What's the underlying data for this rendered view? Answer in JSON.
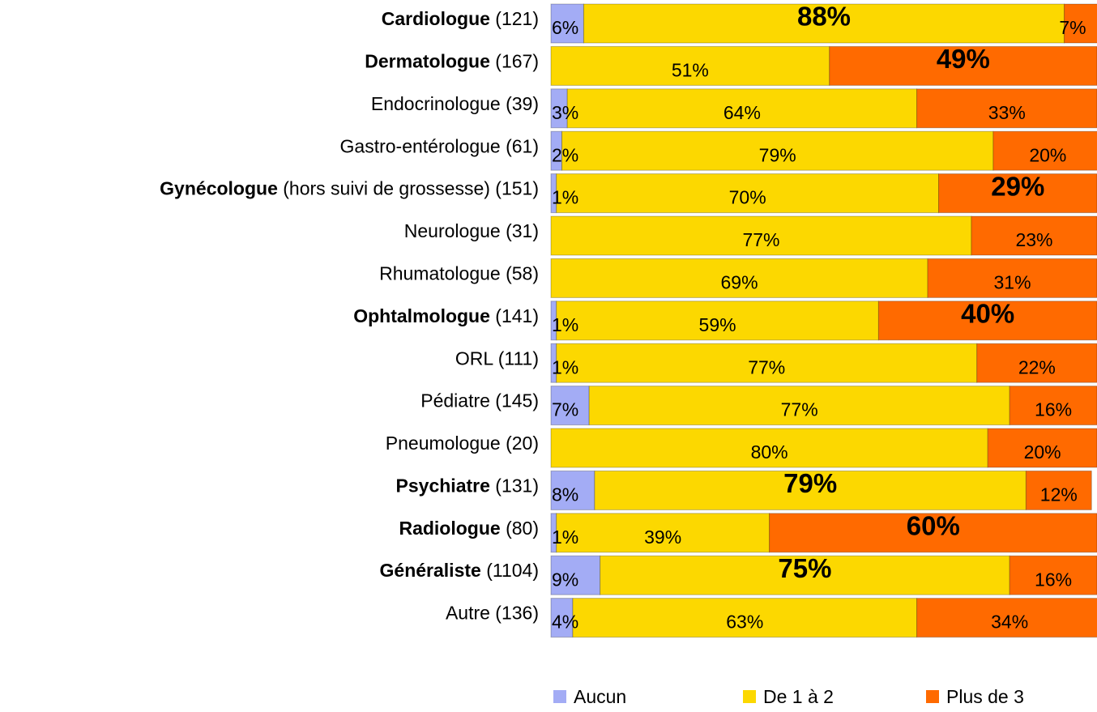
{
  "chart_data": {
    "type": "stacked-bar-horizontal",
    "categories": [
      "Cardiologue (121)",
      "Dermatologue (167)",
      "Endocrinologue (39)",
      "Gastro-entérologue (61)",
      "Gynécologue (hors suivi de grossesse) (151)",
      "Neurologue (31)",
      "Rhumatologue (58)",
      "Ophtalmologue (141)",
      "ORL (111)",
      "Pédiatre (145)",
      "Pneumologue (20)",
      "Psychiatre (131)",
      "Radiologue (80)",
      "Généraliste (1104)",
      "Autre (136)"
    ],
    "highlight": [
      true,
      true,
      false,
      false,
      true,
      false,
      false,
      true,
      false,
      false,
      false,
      true,
      true,
      true,
      false
    ],
    "xlim": [
      0,
      100
    ],
    "legend": "bottom",
    "series": [
      {
        "name": "Aucun",
        "color": "#a3acf5",
        "values": [
          6,
          0,
          3,
          2,
          1,
          0,
          0,
          1,
          1,
          7,
          0,
          8,
          1,
          9,
          4
        ],
        "value_labels": [
          "6%",
          null,
          "3%",
          "2%",
          "1%",
          null,
          null,
          "1%",
          "1%",
          "7%",
          null,
          "8%",
          "1%",
          "9%",
          "4%"
        ],
        "emphasized": [
          false,
          false,
          false,
          false,
          false,
          false,
          false,
          false,
          false,
          false,
          false,
          false,
          false,
          false,
          false
        ]
      },
      {
        "name": "De 1 à 2",
        "color": "#fcd800",
        "values": [
          88,
          51,
          64,
          79,
          70,
          77,
          69,
          59,
          77,
          77,
          80,
          79,
          39,
          75,
          63
        ],
        "value_labels": [
          "88%",
          "51%",
          "64%",
          "79%",
          "70%",
          "77%",
          "69%",
          "59%",
          "77%",
          "77%",
          "80%",
          "79%",
          "39%",
          "75%",
          "63%"
        ],
        "emphasized": [
          true,
          false,
          false,
          false,
          false,
          false,
          false,
          false,
          false,
          false,
          false,
          true,
          false,
          true,
          false
        ]
      },
      {
        "name": "Plus de 3",
        "color": "#ff6a00",
        "values": [
          7,
          49,
          33,
          20,
          29,
          23,
          31,
          40,
          22,
          16,
          20,
          12,
          60,
          16,
          34
        ],
        "value_labels": [
          "7%",
          "49%",
          "33%",
          "20%",
          "29%",
          "23%",
          "31%",
          "40%",
          "22%",
          "16%",
          "20%",
          "12%",
          "60%",
          "16%",
          "34%"
        ],
        "emphasized": [
          false,
          true,
          false,
          false,
          true,
          false,
          false,
          true,
          false,
          false,
          false,
          false,
          true,
          false,
          false
        ]
      }
    ]
  }
}
